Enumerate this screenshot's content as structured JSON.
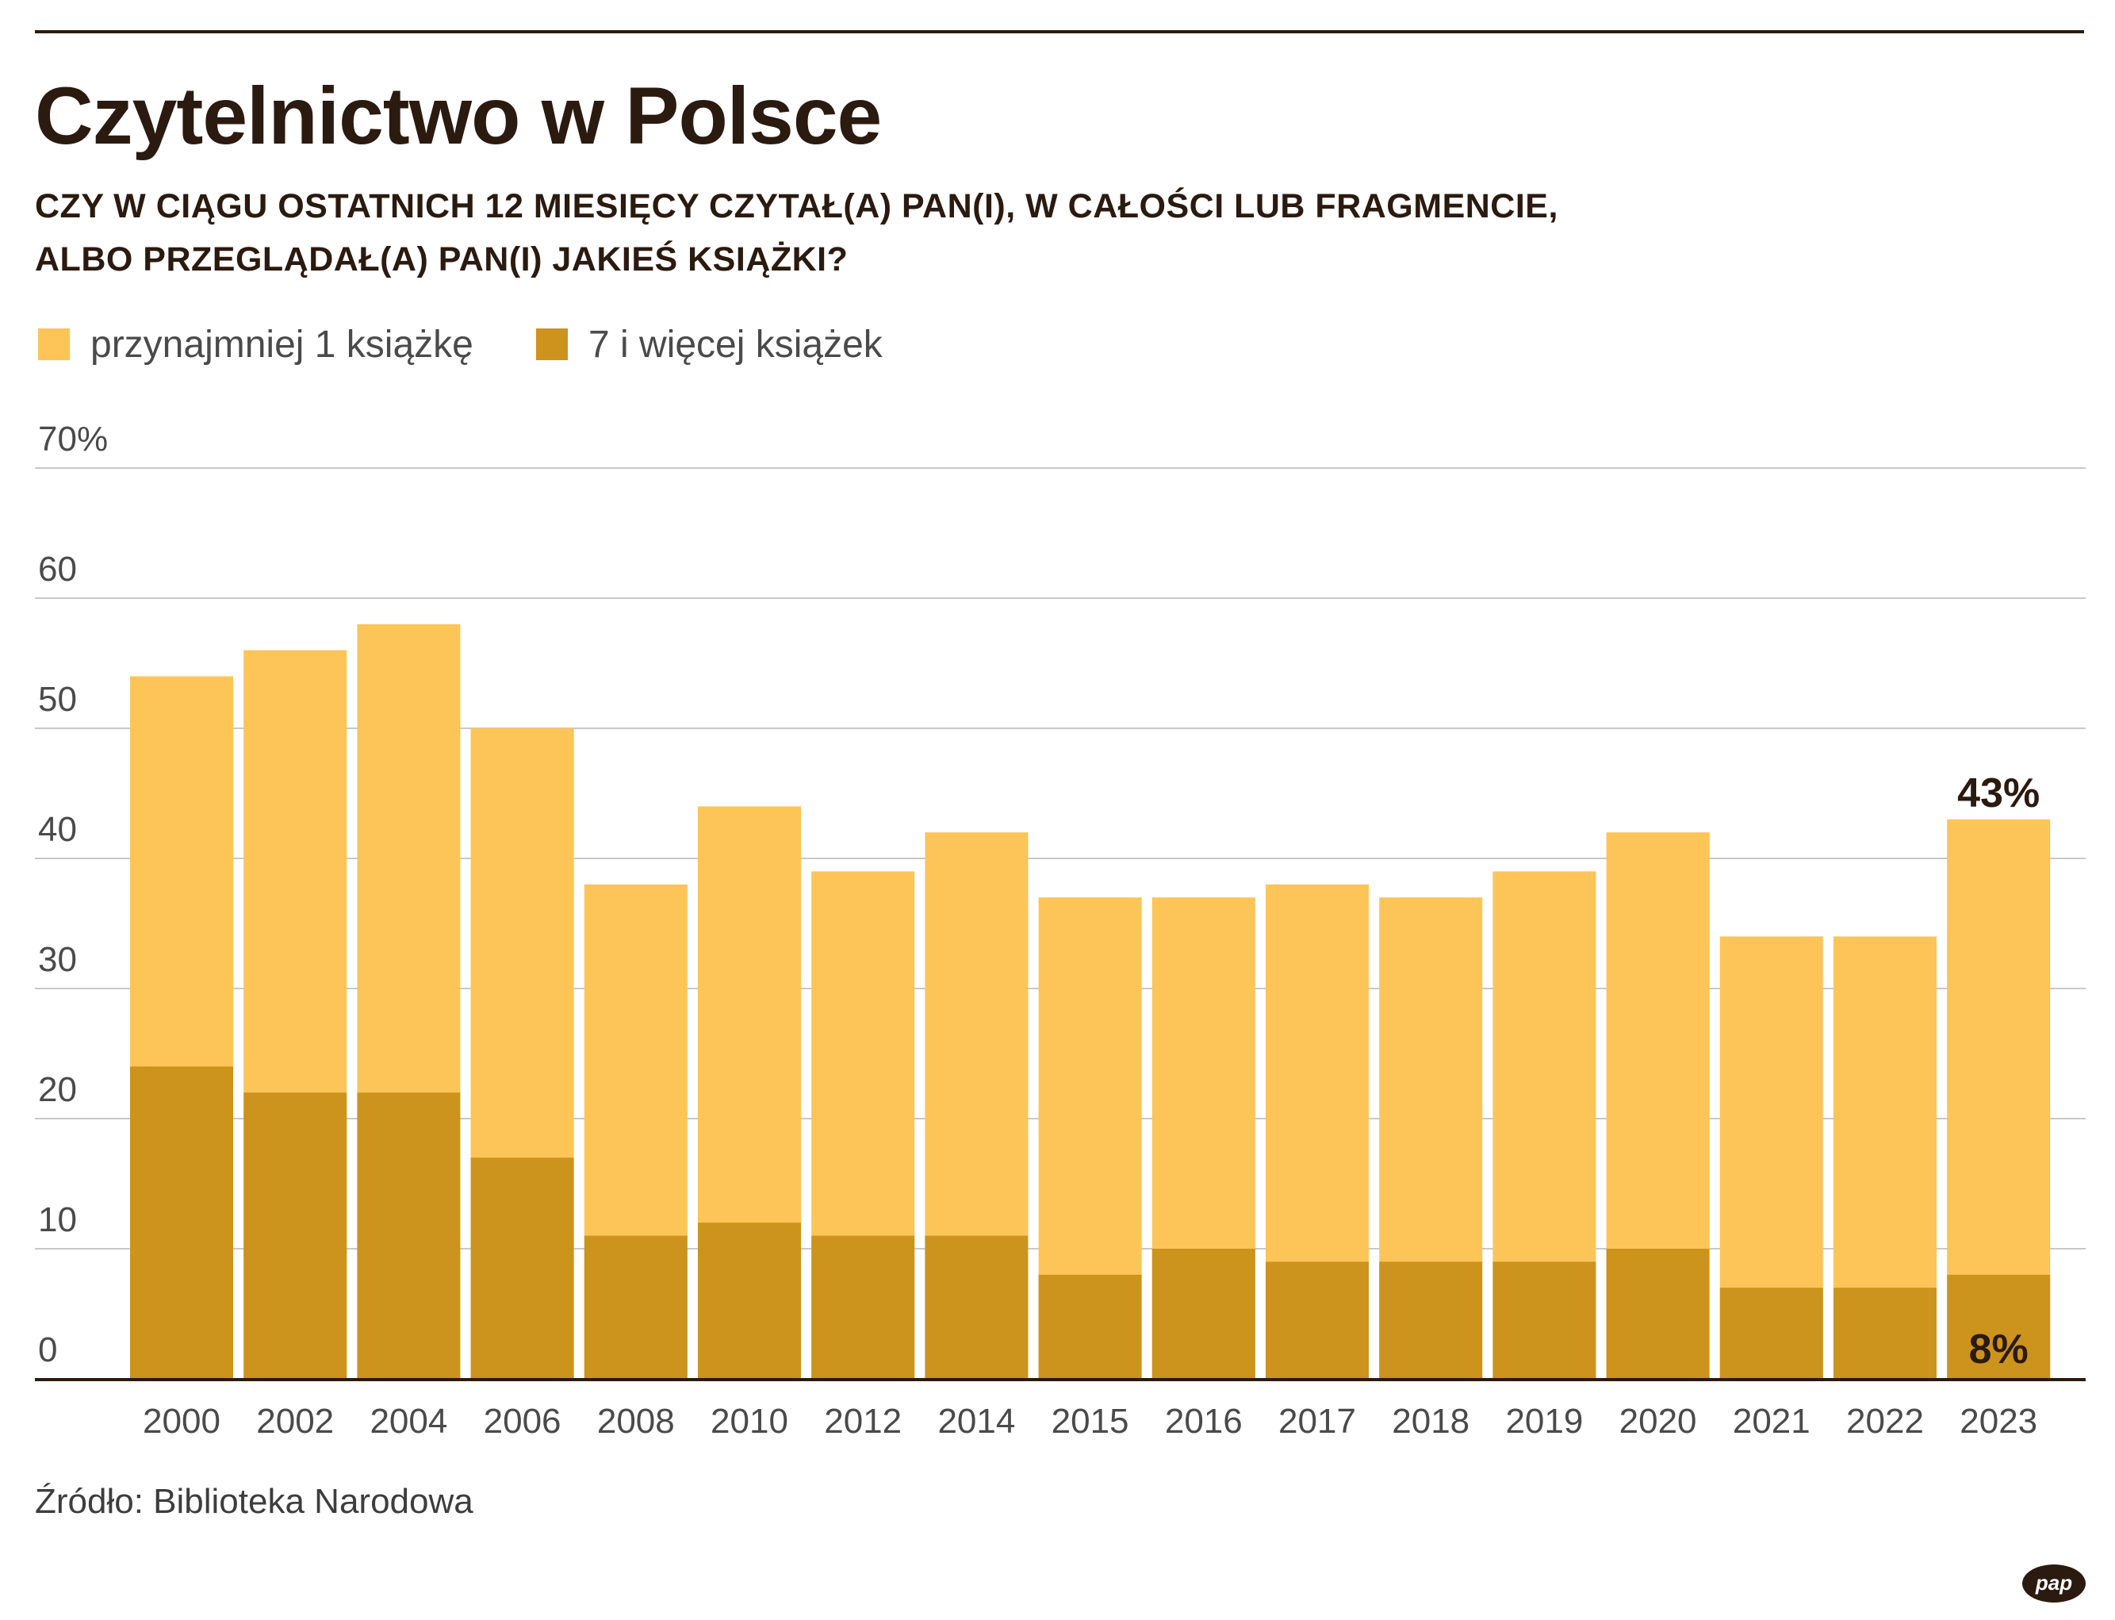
{
  "title": "Czytelnictwo w Polsce",
  "subtitle_lines": [
    "CZY W CIĄGU OSTATNICH 12 MIESIĘCY CZYTAŁ(A) PAN(I), W CAŁOŚCI LUB FRAGMENCIE,",
    "ALBO PRZEGLĄDAŁ(A) PAN(I) JAKIEŚ KSIĄŻKI?"
  ],
  "source": "Źródło: Biblioteka Narodowa",
  "logo": {
    "text": "pap"
  },
  "colors": {
    "series_1": "#FDC457",
    "series_2": "#CC931D",
    "text": "#2B1A0F",
    "grid": "#C8C8C8"
  },
  "chart_data": {
    "type": "bar",
    "stacking": "overlay",
    "categories": [
      "2000",
      "2002",
      "2004",
      "2006",
      "2008",
      "2010",
      "2012",
      "2014",
      "2015",
      "2016",
      "2017",
      "2018",
      "2019",
      "2020",
      "2021",
      "2022",
      "2023"
    ],
    "series": [
      {
        "name": "przynajmniej 1 książkę",
        "color": "#FDC457",
        "values": [
          54,
          56,
          58,
          50,
          38,
          44,
          39,
          42,
          37,
          37,
          38,
          37,
          39,
          42,
          34,
          34,
          43
        ]
      },
      {
        "name": "7 i więcej książek",
        "color": "#CC931D",
        "values": [
          24,
          22,
          22,
          17,
          11,
          12,
          11,
          11,
          8,
          10,
          9,
          9,
          9,
          10,
          7,
          7,
          8
        ]
      }
    ],
    "ylim": [
      0,
      70
    ],
    "yticks": [
      0,
      10,
      20,
      30,
      40,
      50,
      60,
      70
    ],
    "ytick_labels": [
      "0",
      "10",
      "20",
      "30",
      "40",
      "50",
      "60",
      "70%"
    ],
    "annotations": [
      {
        "category": "2023",
        "series": "przynajmniej 1 książkę",
        "text": "43%"
      },
      {
        "category": "2023",
        "series": "7 i więcej książek",
        "text": "8%"
      }
    ],
    "grid": true,
    "legend": "top-left",
    "xlabel": "",
    "ylabel": ""
  }
}
